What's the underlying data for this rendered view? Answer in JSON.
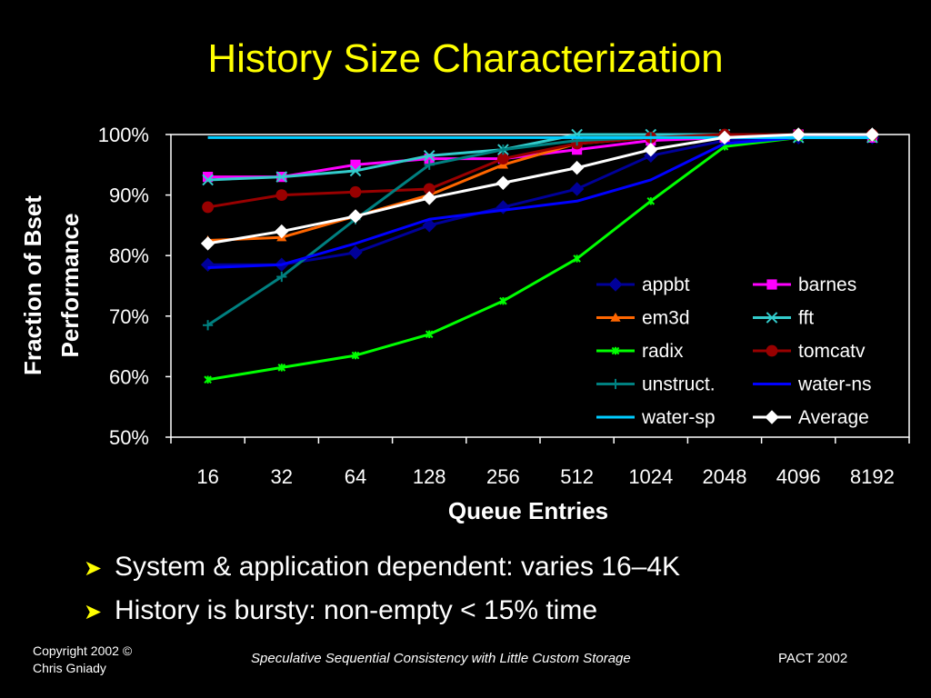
{
  "slide": {
    "title": "History Size Characterization",
    "bullets": [
      "System & application dependent: varies 16–4K",
      "History is bursty: non-empty < 15% time"
    ],
    "footer": {
      "copyright": "Copyright 2002 ©",
      "author": "Chris Gniady",
      "center": "Speculative Sequential Consistency with Little Custom Storage",
      "right": "PACT 2002"
    }
  },
  "colors": {
    "background": "#000000",
    "title": "#ffff00",
    "text": "#ffffff"
  },
  "chart_data": {
    "type": "line",
    "xlabel": "Queue Entries",
    "ylabel": [
      "Fraction of Bset",
      "Performance"
    ],
    "categories": [
      "16",
      "32",
      "64",
      "128",
      "256",
      "512",
      "1024",
      "2048",
      "4096",
      "8192"
    ],
    "yticks": [
      "50%",
      "60%",
      "70%",
      "80%",
      "90%",
      "100%"
    ],
    "ylim": [
      50,
      100
    ],
    "grid": false,
    "legend_position": "lower-right inside plot, two columns",
    "series": [
      {
        "name": "appbt",
        "color": "#000099",
        "marker": "diamond",
        "values": [
          78.5,
          78.5,
          80.5,
          85,
          88,
          91,
          96.5,
          99,
          99.5,
          99.5
        ]
      },
      {
        "name": "barnes",
        "color": "#ff00ff",
        "marker": "square",
        "values": [
          93,
          93,
          95,
          96,
          96,
          97.5,
          99,
          99.5,
          100,
          99.5
        ]
      },
      {
        "name": "em3d",
        "color": "#ff6600",
        "marker": "triangle",
        "values": [
          82.5,
          83,
          86.5,
          90,
          95,
          98.5,
          99.5,
          99.5,
          100,
          100
        ]
      },
      {
        "name": "fft",
        "color": "#33cccc",
        "marker": "x",
        "values": [
          92.5,
          93,
          94,
          96.5,
          97.5,
          100,
          100,
          100,
          99.5,
          99.5
        ]
      },
      {
        "name": "radix",
        "color": "#00ff00",
        "marker": "star",
        "values": [
          59.5,
          61.5,
          63.5,
          67,
          72.5,
          79.5,
          89,
          98,
          99.5,
          99.5
        ]
      },
      {
        "name": "tomcatv",
        "color": "#990000",
        "marker": "circle",
        "values": [
          88,
          90,
          90.5,
          91,
          96,
          98.5,
          99.5,
          100,
          100,
          100
        ]
      },
      {
        "name": "unstruct.",
        "color": "#008080",
        "marker": "plus",
        "values": [
          68.5,
          76.5,
          86,
          95,
          97.5,
          99,
          99.5,
          99.5,
          100,
          100
        ]
      },
      {
        "name": "water-ns",
        "color": "#0000ff",
        "marker": "none",
        "values": [
          78,
          78.5,
          82,
          86,
          87.5,
          89,
          92.5,
          98.5,
          99.5,
          99.5
        ]
      },
      {
        "name": "water-sp",
        "color": "#00ccff",
        "marker": "none",
        "values": [
          99.5,
          99.5,
          99.5,
          99.5,
          99.5,
          99.5,
          99.5,
          99.5,
          99.5,
          99.5
        ]
      },
      {
        "name": "Average",
        "color": "#ffffff",
        "marker": "diamond",
        "values": [
          82,
          84,
          86.5,
          89.5,
          92,
          94.5,
          97.5,
          99.5,
          100,
          100
        ]
      }
    ]
  }
}
